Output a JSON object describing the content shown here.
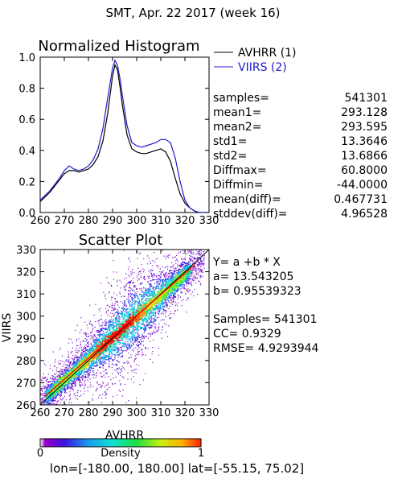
{
  "page_title": "SMT,  Apr. 22 2017 (week 16)",
  "footer": {
    "lon_label": "lon=",
    "lon_range": "[-180.00, 180.00]",
    "lat_label": "lat=",
    "lat_range": "[-55.15, 75.02]"
  },
  "stats": {
    "rows": [
      {
        "label": "samples=",
        "value": "541301"
      },
      {
        "label": "mean1=",
        "value": "293.128"
      },
      {
        "label": "mean2=",
        "value": "293.595"
      },
      {
        "label": "std1=",
        "value": "13.3646"
      },
      {
        "label": "std2=",
        "value": "13.6866"
      },
      {
        "label": "Diffmax=",
        "value": "60.8000"
      },
      {
        "label": "Diffmin=",
        "value": "-44.0000"
      },
      {
        "label": "mean(diff)=",
        "value": "0.467731"
      },
      {
        "label": "stddev(diff)=",
        "value": "4.96528"
      }
    ]
  },
  "regression": {
    "equation": "Y= a +b * X",
    "a": "a= 13.543205",
    "b": "b= 0.95539323",
    "samples": "Samples= 541301",
    "cc": "CC=  0.9329",
    "rmse": "RMSE= 4.9293944"
  },
  "colorbar": {
    "label": "Density",
    "min_label": "0",
    "max_label": "1"
  },
  "colors": {
    "avhrr": "#000000",
    "viirs": "#1a1acc",
    "fit_line": "#ff0000",
    "one_to_one": "#000000"
  },
  "chart_data": [
    {
      "type": "line",
      "title": "Normalized Histogram",
      "xlabel": "",
      "ylabel": "",
      "xlim": [
        260,
        330
      ],
      "ylim": [
        0.0,
        1.0
      ],
      "xticks": [
        "260",
        "270",
        "280",
        "290",
        "300",
        "310",
        "320",
        "330"
      ],
      "yticks": [
        "0.0",
        "0.2",
        "0.4",
        "0.6",
        "0.8",
        "1.0"
      ],
      "legend": "top-right",
      "series": [
        {
          "name": "AVHRR (1)",
          "color": "#000000",
          "x": [
            260,
            262,
            264,
            266,
            268,
            270,
            272,
            274,
            276,
            278,
            280,
            282,
            284,
            286,
            288,
            290,
            291,
            292,
            293,
            294,
            296,
            298,
            300,
            302,
            304,
            306,
            308,
            310,
            312,
            314,
            316,
            318,
            320,
            322,
            324,
            326,
            328,
            330
          ],
          "y": [
            0.07,
            0.1,
            0.13,
            0.17,
            0.21,
            0.25,
            0.27,
            0.27,
            0.26,
            0.27,
            0.28,
            0.31,
            0.36,
            0.46,
            0.64,
            0.88,
            0.95,
            0.92,
            0.82,
            0.7,
            0.5,
            0.41,
            0.39,
            0.38,
            0.38,
            0.39,
            0.4,
            0.41,
            0.39,
            0.33,
            0.22,
            0.12,
            0.06,
            0.03,
            0.01,
            0.0,
            0.0,
            0.0
          ]
        },
        {
          "name": "VIIRS (2)",
          "color": "#1a1acc",
          "x": [
            260,
            262,
            264,
            266,
            268,
            270,
            272,
            274,
            276,
            278,
            280,
            282,
            284,
            286,
            288,
            290,
            291,
            292,
            293,
            294,
            296,
            298,
            300,
            302,
            304,
            306,
            308,
            310,
            312,
            314,
            316,
            318,
            320,
            322,
            324,
            326,
            328,
            330
          ],
          "y": [
            0.08,
            0.11,
            0.14,
            0.18,
            0.22,
            0.27,
            0.3,
            0.28,
            0.27,
            0.28,
            0.3,
            0.34,
            0.41,
            0.54,
            0.74,
            0.93,
            0.98,
            0.95,
            0.87,
            0.76,
            0.56,
            0.45,
            0.43,
            0.42,
            0.43,
            0.44,
            0.45,
            0.47,
            0.47,
            0.45,
            0.35,
            0.2,
            0.08,
            0.03,
            0.01,
            0.0,
            0.0,
            0.0
          ]
        }
      ]
    },
    {
      "type": "heatmap",
      "title": "Scatter Plot",
      "xlabel": "AVHRR",
      "ylabel": "VIIRS",
      "xlim": [
        260,
        330
      ],
      "ylim": [
        260,
        330
      ],
      "xticks": [
        "260",
        "270",
        "280",
        "290",
        "300",
        "310",
        "320",
        "330"
      ],
      "yticks": [
        "260",
        "270",
        "280",
        "290",
        "300",
        "310",
        "320",
        "330"
      ],
      "fit": {
        "intercept": 13.543205,
        "slope": 0.95539323,
        "color": "#ff0000"
      },
      "reference_line": "1:1",
      "colorscale": "rainbow",
      "density_range": [
        0,
        1
      ]
    }
  ]
}
